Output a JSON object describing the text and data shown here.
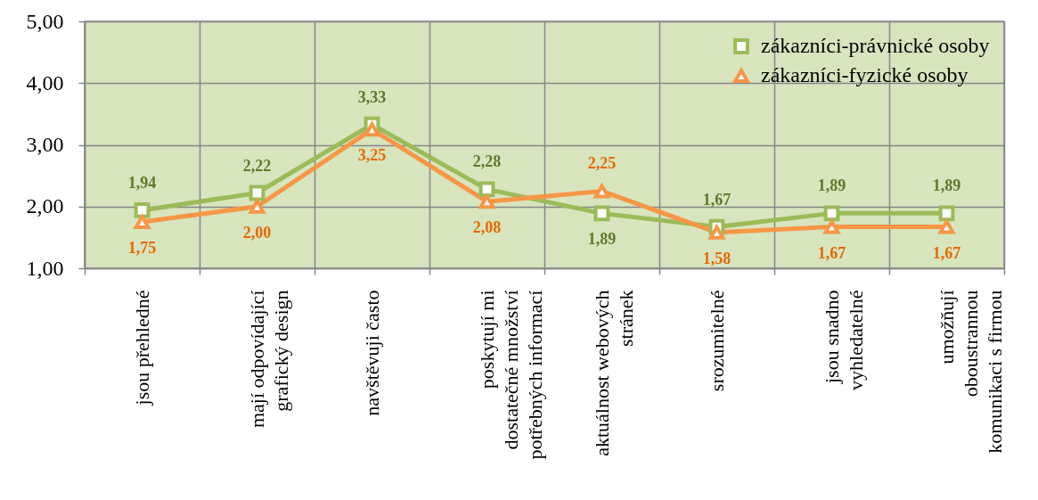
{
  "chart_data": {
    "type": "line",
    "categories": [
      "jsou přehledné",
      "mají odpovídající grafický design",
      "navštěvuji často",
      "poskytují mi dostatečné množství potřebných informací",
      "aktuálnost webových stránek",
      "srozumitelné",
      "jsou snadno vyhledatelné",
      "umožňují oboustrannou komunikaci s firmou"
    ],
    "series": [
      {
        "name": "zákazníci-právnické osoby",
        "color": "#9bbb59",
        "marker": "square",
        "values": [
          1.94,
          2.22,
          3.33,
          2.28,
          1.89,
          1.67,
          1.89,
          1.89
        ],
        "value_labels": [
          "1,94",
          "2,22",
          "3,33",
          "2,28",
          "1,89",
          "1,67",
          "1,89",
          "1,89"
        ]
      },
      {
        "name": "zákazníci-fyzické osoby",
        "color": "#f79646",
        "marker": "triangle",
        "values": [
          1.75,
          2.0,
          3.25,
          2.08,
          2.25,
          1.58,
          1.67,
          1.67
        ],
        "value_labels": [
          "1,75",
          "2,00",
          "3,25",
          "2,08",
          "2,25",
          "1,58",
          "1,67",
          "1,67"
        ]
      }
    ],
    "ylim": [
      1,
      5
    ],
    "yticks": [
      {
        "value": 1,
        "label": "1,00"
      },
      {
        "value": 2,
        "label": "2,00"
      },
      {
        "value": 3,
        "label": "3,00"
      },
      {
        "value": 4,
        "label": "4,00"
      },
      {
        "value": 5,
        "label": "5,00"
      }
    ],
    "grid": true,
    "legend": "top right",
    "line_style": "solid"
  }
}
